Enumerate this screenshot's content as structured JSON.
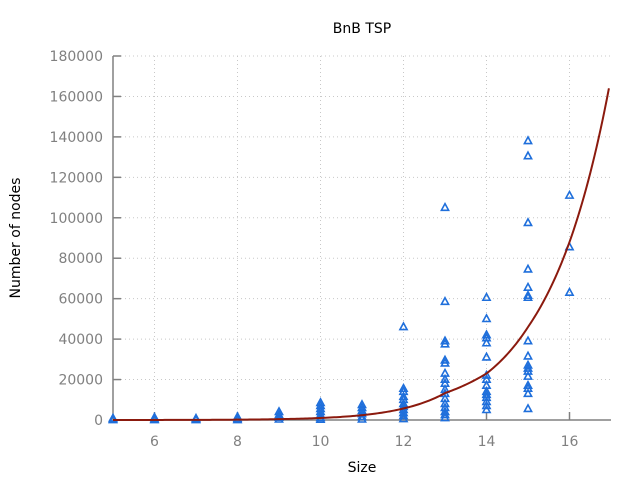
{
  "chart_data": {
    "type": "scatter",
    "title": "BnB TSP",
    "xlabel": "Size",
    "ylabel": "Number of nodes",
    "xlim": [
      5,
      17
    ],
    "ylim": [
      0,
      180000
    ],
    "xticks": [
      6,
      8,
      10,
      12,
      14,
      16
    ],
    "yticks": [
      0,
      20000,
      40000,
      60000,
      80000,
      100000,
      120000,
      140000,
      160000,
      180000
    ],
    "grid": true,
    "legend": "none",
    "colors": {
      "points": "#1f6fdb",
      "fit": "#8b1a0e",
      "axis": "#808080",
      "grid": "#c8c8c8"
    },
    "series": [
      {
        "marker": "triangle",
        "points": [
          [
            5,
            0
          ],
          [
            5,
            300
          ],
          [
            5,
            800
          ],
          [
            6,
            0
          ],
          [
            6,
            500
          ],
          [
            6,
            1200
          ],
          [
            7,
            0
          ],
          [
            7,
            300
          ],
          [
            7,
            700
          ],
          [
            8,
            0
          ],
          [
            8,
            600
          ],
          [
            8,
            1500
          ],
          [
            9,
            300
          ],
          [
            9,
            1200
          ],
          [
            9,
            2500
          ],
          [
            9,
            4000
          ],
          [
            10,
            200
          ],
          [
            10,
            1000
          ],
          [
            10,
            2500
          ],
          [
            10,
            4000
          ],
          [
            10,
            5500
          ],
          [
            10,
            7000
          ],
          [
            10,
            8500
          ],
          [
            11,
            300
          ],
          [
            11,
            1500
          ],
          [
            11,
            3000
          ],
          [
            11,
            4500
          ],
          [
            11,
            6000
          ],
          [
            11,
            7500
          ],
          [
            12,
            500
          ],
          [
            12,
            2000
          ],
          [
            12,
            3500
          ],
          [
            12,
            5000
          ],
          [
            12,
            6500
          ],
          [
            12,
            8000
          ],
          [
            12,
            10000
          ],
          [
            12,
            11500
          ],
          [
            12,
            14000
          ],
          [
            12,
            15500
          ],
          [
            12,
            46000
          ],
          [
            13,
            1000
          ],
          [
            13,
            2500
          ],
          [
            13,
            4000
          ],
          [
            13,
            6000
          ],
          [
            13,
            8000
          ],
          [
            13,
            10500
          ],
          [
            13,
            13000
          ],
          [
            13,
            15000
          ],
          [
            13,
            18000
          ],
          [
            13,
            20000
          ],
          [
            13,
            23000
          ],
          [
            13,
            28000
          ],
          [
            13,
            29500
          ],
          [
            13,
            37500
          ],
          [
            13,
            39000
          ],
          [
            13,
            58500
          ],
          [
            13,
            105000
          ],
          [
            14,
            5000
          ],
          [
            14,
            7000
          ],
          [
            14,
            9000
          ],
          [
            14,
            11000
          ],
          [
            14,
            12500
          ],
          [
            14,
            14000
          ],
          [
            14,
            17000
          ],
          [
            14,
            20000
          ],
          [
            14,
            22000
          ],
          [
            14,
            31000
          ],
          [
            14,
            38000
          ],
          [
            14,
            40500
          ],
          [
            14,
            42000
          ],
          [
            14,
            50000
          ],
          [
            14,
            60500
          ],
          [
            15,
            5500
          ],
          [
            15,
            13000
          ],
          [
            15,
            15500
          ],
          [
            15,
            17000
          ],
          [
            15,
            21500
          ],
          [
            15,
            24000
          ],
          [
            15,
            25500
          ],
          [
            15,
            27000
          ],
          [
            15,
            31500
          ],
          [
            15,
            39000
          ],
          [
            15,
            60500
          ],
          [
            15,
            61500
          ],
          [
            15,
            65500
          ],
          [
            15,
            74500
          ],
          [
            15,
            97500
          ],
          [
            15,
            130500
          ],
          [
            15,
            138000
          ],
          [
            16,
            63000
          ],
          [
            16,
            85500
          ],
          [
            16,
            111000
          ]
        ]
      }
    ],
    "fit_curve": {
      "type": "exponential",
      "x_start": 5,
      "x_end": 16.95,
      "points": [
        [
          5,
          10
        ],
        [
          8,
          170
        ],
        [
          10,
          1000
        ],
        [
          12,
          5700
        ],
        [
          13,
          13300
        ],
        [
          14,
          23000
        ],
        [
          15,
          46000
        ],
        [
          16,
          88000
        ],
        [
          16.95,
          164000
        ]
      ]
    }
  }
}
